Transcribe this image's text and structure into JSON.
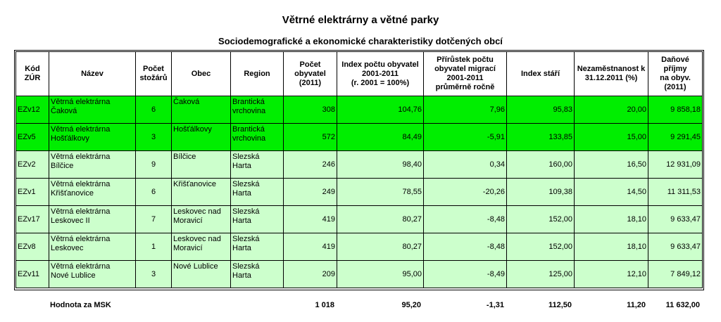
{
  "title": "Větrné elektrárny a větné parky",
  "subtitle": "Sociodemografické a ekonomické charakteristiky dotčených obcí",
  "headers": {
    "kod": [
      "Kód",
      "ZÚR"
    ],
    "nazev": [
      "Název"
    ],
    "pocet_stozaru": [
      "Počet",
      "stožárů"
    ],
    "obec": [
      "Obec"
    ],
    "region": [
      "Region"
    ],
    "pocet_obyvatel": [
      "Počet",
      "obyvatel",
      "(2011)"
    ],
    "index_poctu": [
      "Index počtu obyvatel",
      "2001-2011",
      "(r. 2001 = 100%)"
    ],
    "prirustek": [
      "Přírůstek počtu",
      "obyvatel migrací",
      "2001-2011",
      "průměrně ročně"
    ],
    "index_stari": [
      "Index stáří"
    ],
    "nezamestnanost": [
      "Nezaměstnanost k",
      "31.12.2011 (%)"
    ],
    "danove_prijmy": [
      "Daňové příjmy",
      "na obyv. (2011)"
    ]
  },
  "rows": [
    {
      "kod": "EZv12",
      "nazev": [
        "Větrná elektrárna",
        "Čaková"
      ],
      "stozaru": "6",
      "obec": [
        "Čaková"
      ],
      "region": [
        "Brantická",
        "vrchovina"
      ],
      "obyvatel": "308",
      "index": "104,76",
      "prirustek": "7,96",
      "stari": "95,83",
      "nezam": "20,00",
      "dan": "9 858,18",
      "highlight": true
    },
    {
      "kod": "EZv5",
      "nazev": [
        "Větrná elektrárna",
        "Hošťálkovy"
      ],
      "stozaru": "3",
      "obec": [
        "Hošťálkovy"
      ],
      "region": [
        "Brantická",
        "vrchovina"
      ],
      "obyvatel": "572",
      "index": "84,49",
      "prirustek": "-5,91",
      "stari": "133,85",
      "nezam": "15,00",
      "dan": "9 291,45",
      "highlight": true
    },
    {
      "kod": "EZv2",
      "nazev": [
        "Větrná elektrárna",
        "Bílčice"
      ],
      "stozaru": "9",
      "obec": [
        "Bílčice"
      ],
      "region": [
        "Slezská",
        "Harta"
      ],
      "obyvatel": "246",
      "index": "98,40",
      "prirustek": "0,34",
      "stari": "160,00",
      "nezam": "16,50",
      "dan": "12 931,09",
      "highlight": false
    },
    {
      "kod": "EZv1",
      "nazev": [
        "Větrná elektrárna",
        "Křišťanovice"
      ],
      "stozaru": "6",
      "obec": [
        "Křišťanovice"
      ],
      "region": [
        "Slezská",
        "Harta"
      ],
      "obyvatel": "249",
      "index": "78,55",
      "prirustek": "-20,26",
      "stari": "109,38",
      "nezam": "14,50",
      "dan": "11 311,53",
      "highlight": false
    },
    {
      "kod": "EZv17",
      "nazev": [
        "Větrná elektrárna",
        "Leskovec II"
      ],
      "stozaru": "7",
      "obec": [
        "Leskovec nad",
        "Moravicí"
      ],
      "region": [
        "Slezská",
        "Harta"
      ],
      "obyvatel": "419",
      "index": "80,27",
      "prirustek": "-8,48",
      "stari": "152,00",
      "nezam": "18,10",
      "dan": "9 633,47",
      "highlight": false
    },
    {
      "kod": "EZv8",
      "nazev": [
        "Větrná elektrárna",
        "Leskovec"
      ],
      "stozaru": "1",
      "obec": [
        "Leskovec nad",
        "Moravicí"
      ],
      "region": [
        "Slezská",
        "Harta"
      ],
      "obyvatel": "419",
      "index": "80,27",
      "prirustek": "-8,48",
      "stari": "152,00",
      "nezam": "18,10",
      "dan": "9 633,47",
      "highlight": false
    },
    {
      "kod": "EZv11",
      "nazev": [
        "Větrná elektrárna",
        "Nové Lublice"
      ],
      "stozaru": "3",
      "obec": [
        "Nové Lublice"
      ],
      "region": [
        "Slezská",
        "Harta"
      ],
      "obyvatel": "209",
      "index": "95,00",
      "prirustek": "-8,49",
      "stari": "125,00",
      "nezam": "12,10",
      "dan": "7 849,12",
      "highlight": false
    }
  ],
  "total": {
    "label": "Hodnota za MSK",
    "obyvatel": "1 018",
    "index": "95,20",
    "prirustek": "-1,31",
    "stari": "112,50",
    "nezam": "11,20",
    "dan": "11 632,00"
  },
  "colors": {
    "highlight_row": "#00ee00",
    "normal_row": "#ccffcc"
  }
}
